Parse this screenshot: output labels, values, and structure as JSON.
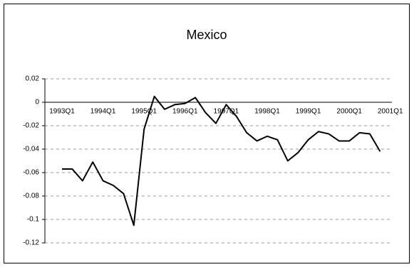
{
  "chart_data": {
    "type": "line",
    "title": "Mexico",
    "categories": [
      "1993Q1",
      null,
      null,
      null,
      "1994Q1",
      null,
      null,
      null,
      "1995Q1",
      null,
      null,
      null,
      "1996Q1",
      null,
      null,
      null,
      "1997Q1",
      null,
      null,
      null,
      "1998Q1",
      null,
      null,
      null,
      "1999Q1",
      null,
      null,
      null,
      "2000Q1",
      null,
      null,
      null,
      "2001Q1"
    ],
    "series": [
      {
        "name": "Mexico",
        "color": "#000000",
        "values": [
          -0.057,
          -0.057,
          -0.067,
          -0.051,
          -0.067,
          -0.071,
          -0.078,
          -0.105,
          -0.023,
          0.005,
          -0.006,
          -0.002,
          -0.001,
          0.004,
          -0.009,
          -0.018,
          -0.002,
          -0.012,
          -0.026,
          -0.033,
          -0.029,
          -0.032,
          -0.05,
          -0.043,
          -0.032,
          -0.025,
          -0.027,
          -0.033,
          -0.033,
          -0.026,
          -0.027,
          -0.042,
          null
        ]
      }
    ],
    "ylim": [
      -0.12,
      0.02
    ],
    "yticks": [
      0.02,
      0,
      -0.02,
      -0.04,
      -0.06,
      -0.08,
      -0.1,
      -0.12
    ],
    "grid": true
  }
}
